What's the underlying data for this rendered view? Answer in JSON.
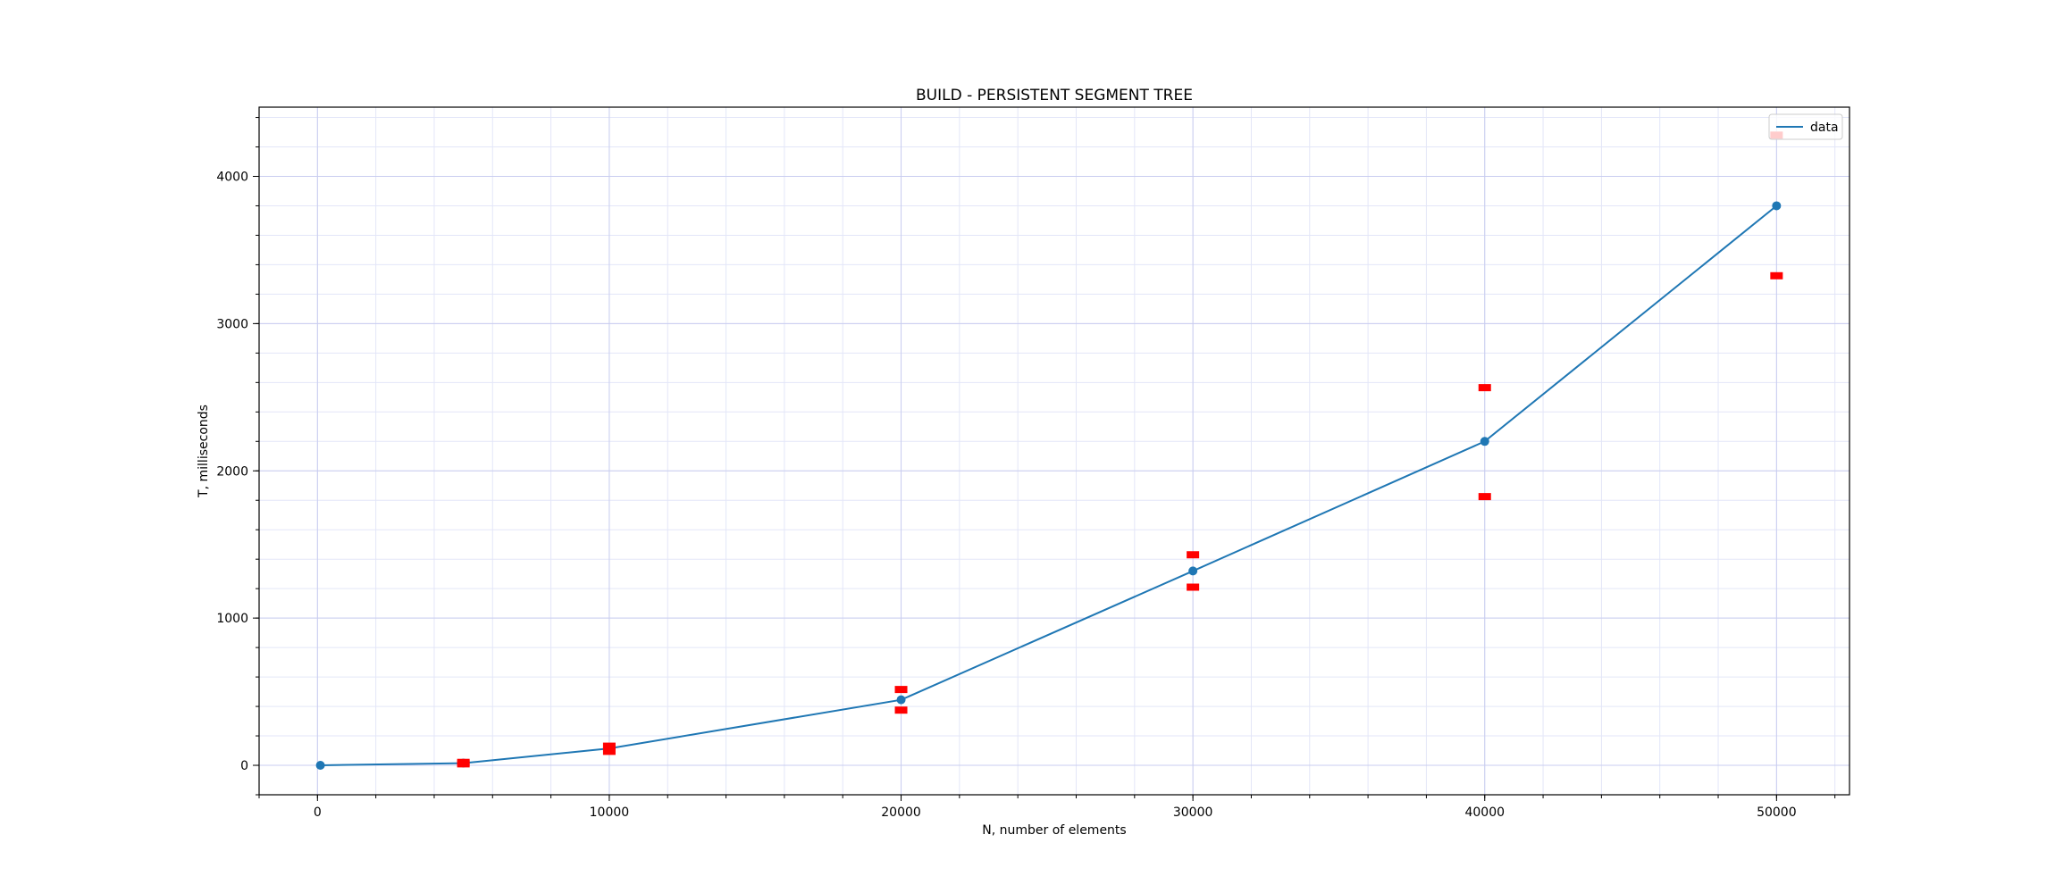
{
  "chart_data": {
    "type": "line",
    "title": "BUILD - PERSISTENT SEGMENT TREE",
    "xlabel": "N, number of elements",
    "ylabel": "T, milliseconds",
    "xlim": [
      -2000,
      52500
    ],
    "ylim": [
      -200,
      4470
    ],
    "xticks": [
      0,
      10000,
      20000,
      30000,
      40000,
      50000
    ],
    "yticks": [
      0,
      1000,
      2000,
      3000,
      4000
    ],
    "grid": true,
    "legend_position": "top-right",
    "series": [
      {
        "name": "data",
        "color": "#1f77b4",
        "x": [
          100,
          5000,
          10000,
          20000,
          30000,
          40000,
          50000
        ],
        "y": [
          0,
          15,
          115,
          445,
          1320,
          2200,
          3800
        ]
      }
    ],
    "error_bounds": {
      "color": "#ff0000",
      "x": [
        5000,
        10000,
        20000,
        30000,
        40000,
        50000
      ],
      "upper": [
        20,
        130,
        515,
        1430,
        2565,
        4280
      ],
      "lower": [
        10,
        95,
        375,
        1210,
        1825,
        3325
      ]
    }
  }
}
